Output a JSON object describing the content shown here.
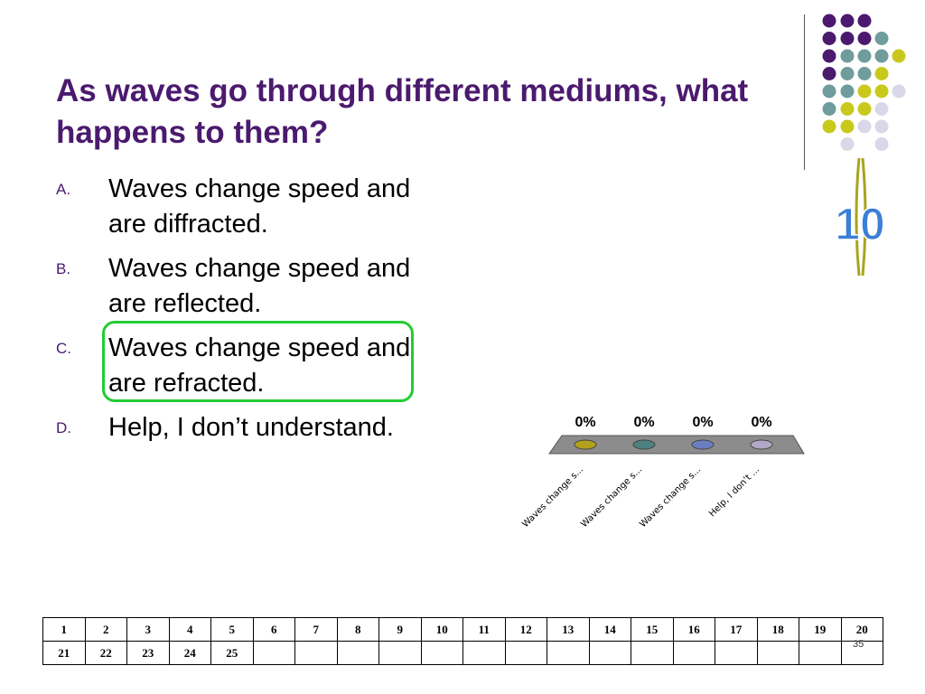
{
  "title": "As waves go through different mediums, what happens to them?",
  "answers": [
    {
      "letter": "A.",
      "text": "Waves change speed and are diffracted."
    },
    {
      "letter": "B.",
      "text": "Waves change speed and are reflected."
    },
    {
      "letter": "C.",
      "text": "Waves change speed and are refracted."
    },
    {
      "letter": "D.",
      "text": "Help, I don’t understand."
    }
  ],
  "countdown": "10",
  "chart_data": {
    "type": "bar",
    "categories": [
      "Waves change s...",
      "Waves change s...",
      "Waves change s...",
      "Help, I don’t ..."
    ],
    "values": [
      0,
      0,
      0,
      0
    ],
    "data_labels": [
      "0%",
      "0%",
      "0%",
      "0%"
    ],
    "colors": [
      "#b3a11e",
      "#4f8080",
      "#6a7fbf",
      "#b0a8c4"
    ]
  },
  "colors": {
    "title": "#4b1a6e",
    "dot_purple": "#4b1a6e",
    "dot_teal": "#6f9c9c",
    "dot_yellow": "#c9c91c",
    "dot_lavender": "#d8d8e8",
    "correct_highlight": "#22cc33"
  },
  "response_table": {
    "row1": [
      "1",
      "2",
      "3",
      "4",
      "5",
      "6",
      "7",
      "8",
      "9",
      "10",
      "11",
      "12",
      "13",
      "14",
      "15",
      "16",
      "17",
      "18",
      "19",
      "20"
    ],
    "row2": [
      "21",
      "22",
      "23",
      "24",
      "25",
      "",
      "",
      "",
      "",
      "",
      "",
      "",
      "",
      "",
      "",
      "",
      "",
      "",
      "",
      ""
    ]
  },
  "slide_number": "35"
}
